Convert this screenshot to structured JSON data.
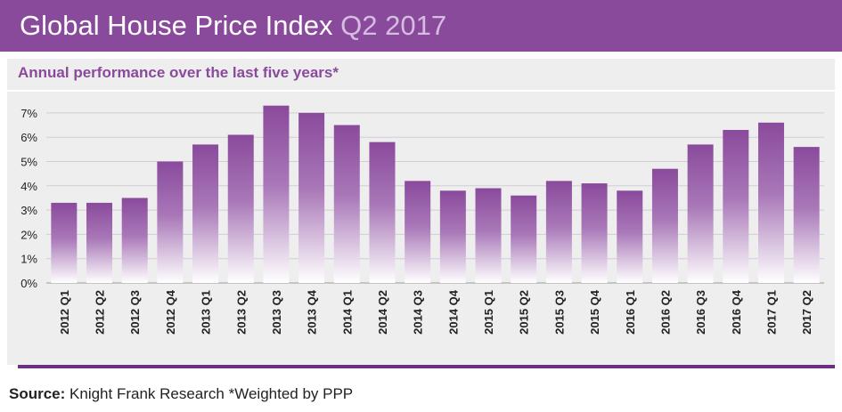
{
  "header": {
    "title": "Global House Price Index",
    "subtitle": "Q2 2017"
  },
  "colors": {
    "brand": "#8a4a9c",
    "bar_top": "#8a4a9c",
    "bar_bottom": "#ffffff",
    "panel": "#eeeeef",
    "footer_bar": "#6d2f80"
  },
  "footer": {
    "source_label": "Source:",
    "source_text": " Knight Frank Research *Weighted by PPP"
  },
  "chart_data": {
    "type": "bar",
    "title": "Annual performance over the last five years*",
    "categories": [
      "2012 Q1",
      "2012 Q2",
      "2012 Q3",
      "2012 Q4",
      "2013 Q1",
      "2013 Q2",
      "2013 Q3",
      "2013 Q4",
      "2014 Q1",
      "2014 Q2",
      "2014 Q3",
      "2014 Q4",
      "2015 Q1",
      "2015 Q2",
      "2015 Q3",
      "2015 Q4",
      "2016 Q1",
      "2016 Q2",
      "2016 Q3",
      "2016 Q4",
      "2017 Q1",
      "2017 Q2"
    ],
    "values": [
      3.3,
      3.3,
      3.5,
      5.0,
      5.7,
      6.1,
      7.3,
      7.0,
      6.5,
      5.8,
      4.2,
      3.8,
      3.9,
      3.6,
      4.2,
      4.1,
      3.8,
      4.7,
      5.7,
      6.3,
      6.6,
      5.6
    ],
    "y_ticks": [
      "0%",
      "1%",
      "2%",
      "3%",
      "4%",
      "5%",
      "6%",
      "7%"
    ],
    "ylim": [
      0,
      7.5
    ],
    "unit": "%",
    "grid": true,
    "legend": "none"
  }
}
